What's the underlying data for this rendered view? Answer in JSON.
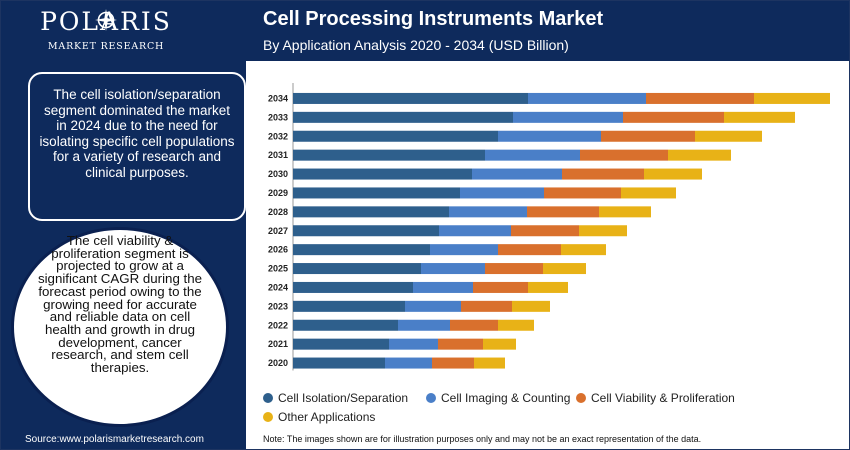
{
  "brand": {
    "name": "POLARIS",
    "sub": "MARKET RESEARCH"
  },
  "header": {
    "title": "Cell Processing Instruments Market",
    "subtitle": "By Application Analysis 2020 - 2034 (USD Billion)"
  },
  "sidebar": {
    "box1_text": "The cell isolation/separation segment dominated the market in 2024 due to the need for isolating specific cell populations for a variety of research and clinical purposes.",
    "circle_text": "The cell viability & proliferation segment is projected to grow at a significant CAGR during the forecast period owing to the growing need for accurate and reliable data on cell health and growth in drug development, cancer research, and stem cell therapies."
  },
  "colors": {
    "navy": "#0e2a5c",
    "series": [
      "#2e5f8c",
      "#4a7fc8",
      "#d9702d",
      "#e8b217"
    ]
  },
  "chart_data": {
    "type": "bar",
    "orientation": "horizontal",
    "stacked": true,
    "title": "Cell Processing Instruments Market",
    "subtitle": "By Application Analysis 2020 - 2034 (USD Billion)",
    "xlabel": "",
    "ylabel": "",
    "axis_values_shown": false,
    "categories": [
      "2020",
      "2021",
      "2022",
      "2023",
      "2024",
      "2025",
      "2026",
      "2027",
      "2028",
      "2029",
      "2030",
      "2031",
      "2032",
      "2033",
      "2034"
    ],
    "series": [
      {
        "name": "Cell Isolation/Separation",
        "values": [
          92,
          96,
          105,
          112,
          120,
          128,
          137,
          146,
          156,
          167,
          179,
          192,
          205,
          220,
          235
        ]
      },
      {
        "name": "Cell Imaging & Counting",
        "values": [
          47,
          49,
          52,
          56,
          60,
          64,
          68,
          72,
          78,
          84,
          90,
          95,
          103,
          110,
          118
        ]
      },
      {
        "name": "Cell Viability & Proliferation",
        "values": [
          42,
          45,
          48,
          51,
          55,
          58,
          63,
          68,
          72,
          77,
          82,
          88,
          94,
          101,
          108
        ]
      },
      {
        "name": "Other Applications",
        "values": [
          31,
          33,
          36,
          38,
          40,
          43,
          45,
          48,
          52,
          55,
          58,
          63,
          67,
          71,
          76
        ]
      }
    ],
    "legend_position": "bottom",
    "grid": false
  },
  "legend": {
    "items": [
      "Cell Isolation/Separation",
      "Cell Imaging & Counting",
      "Cell Viability & Proliferation",
      "Other Applications"
    ]
  },
  "footer": {
    "source": "Source:www.polarismarketresearch.com",
    "note": "Note: The images shown are for illustration purposes only and may not be an exact representation of the data."
  }
}
